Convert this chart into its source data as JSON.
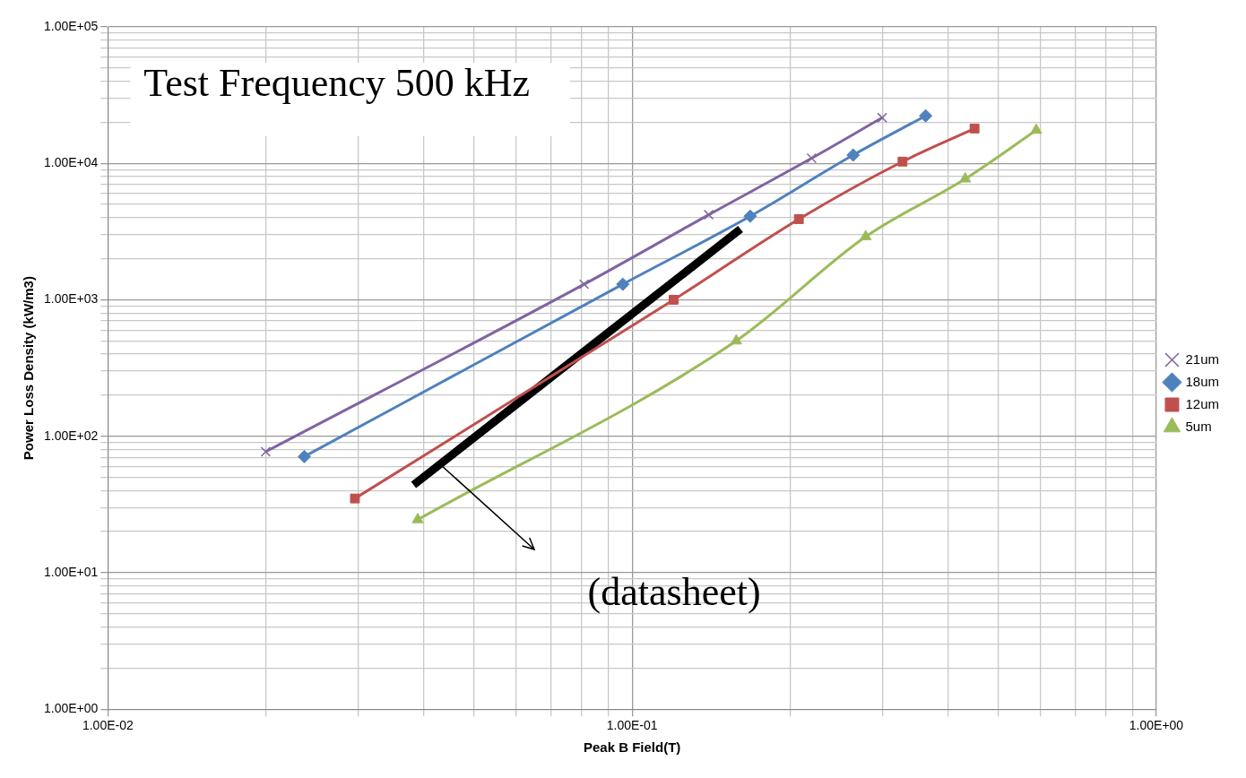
{
  "chart_data": {
    "type": "line",
    "xlabel": "Peak B Field(T)",
    "ylabel": "Power Loss Density (kW/m3)",
    "log": "xy",
    "grid": true,
    "legend": "right",
    "xlim": [
      0.01,
      1
    ],
    "ylim": [
      1,
      100000
    ],
    "xticks": [
      {
        "value": 0.01,
        "label": "1.00E-02"
      },
      {
        "value": 0.02,
        "label": null
      },
      {
        "value": 0.03,
        "label": null
      },
      {
        "value": 0.04,
        "label": null
      },
      {
        "value": 0.05,
        "label": null
      },
      {
        "value": 0.06,
        "label": null
      },
      {
        "value": 0.07,
        "label": null
      },
      {
        "value": 0.08,
        "label": null
      },
      {
        "value": 0.09,
        "label": null
      },
      {
        "value": 0.1,
        "label": "1.00E-01"
      },
      {
        "value": 0.2,
        "label": null
      },
      {
        "value": 0.3,
        "label": null
      },
      {
        "value": 0.4,
        "label": null
      },
      {
        "value": 0.5,
        "label": null
      },
      {
        "value": 0.6,
        "label": null
      },
      {
        "value": 0.7,
        "label": null
      },
      {
        "value": 0.8,
        "label": null
      },
      {
        "value": 0.9,
        "label": null
      },
      {
        "value": 1,
        "label": "1.00E+00"
      }
    ],
    "yticks": [
      {
        "value": 1,
        "label": "1.00E+00"
      },
      {
        "value": 2,
        "label": null
      },
      {
        "value": 3,
        "label": null
      },
      {
        "value": 4,
        "label": null
      },
      {
        "value": 5,
        "label": null
      },
      {
        "value": 6,
        "label": null
      },
      {
        "value": 7,
        "label": null
      },
      {
        "value": 8,
        "label": null
      },
      {
        "value": 9,
        "label": null
      },
      {
        "value": 10,
        "label": "1.00E+01"
      },
      {
        "value": 20,
        "label": null
      },
      {
        "value": 30,
        "label": null
      },
      {
        "value": 40,
        "label": null
      },
      {
        "value": 50,
        "label": null
      },
      {
        "value": 60,
        "label": null
      },
      {
        "value": 70,
        "label": null
      },
      {
        "value": 80,
        "label": null
      },
      {
        "value": 90,
        "label": null
      },
      {
        "value": 100,
        "label": "1.00E+02"
      },
      {
        "value": 200,
        "label": null
      },
      {
        "value": 300,
        "label": null
      },
      {
        "value": 400,
        "label": null
      },
      {
        "value": 500,
        "label": null
      },
      {
        "value": 600,
        "label": null
      },
      {
        "value": 700,
        "label": null
      },
      {
        "value": 800,
        "label": null
      },
      {
        "value": 900,
        "label": null
      },
      {
        "value": 1000,
        "label": "1.00E+03"
      },
      {
        "value": 2000,
        "label": null
      },
      {
        "value": 3000,
        "label": null
      },
      {
        "value": 4000,
        "label": null
      },
      {
        "value": 5000,
        "label": null
      },
      {
        "value": 6000,
        "label": null
      },
      {
        "value": 7000,
        "label": null
      },
      {
        "value": 8000,
        "label": null
      },
      {
        "value": 9000,
        "label": null
      },
      {
        "value": 10000,
        "label": "1.00E+04"
      },
      {
        "value": 20000,
        "label": null
      },
      {
        "value": 30000,
        "label": null
      },
      {
        "value": 40000,
        "label": null
      },
      {
        "value": 50000,
        "label": null
      },
      {
        "value": 60000,
        "label": null
      },
      {
        "value": 70000,
        "label": null
      },
      {
        "value": 80000,
        "label": null
      },
      {
        "value": 90000,
        "label": null
      },
      {
        "value": 100000,
        "label": "1.00E+05"
      }
    ],
    "series": [
      {
        "name": "21um",
        "color": "#8064a2",
        "marker": "cross",
        "x": [
          0.02,
          0.081,
          0.14,
          0.22,
          0.3
        ],
        "values": [
          77,
          1300,
          4200,
          10900,
          21600
        ]
      },
      {
        "name": "18um",
        "color": "#4f81bd",
        "marker": "diamond",
        "x": [
          0.0237,
          0.096,
          0.168,
          0.264,
          0.363
        ],
        "values": [
          71,
          1300,
          4100,
          11500,
          22300
        ]
      },
      {
        "name": "12um",
        "color": "#c0504d",
        "marker": "square",
        "x": [
          0.0296,
          0.12,
          0.208,
          0.328,
          0.45
        ],
        "values": [
          35,
          1000,
          3900,
          10300,
          18000
        ]
      },
      {
        "name": "5um",
        "color": "#9bbb59",
        "marker": "triangle",
        "x": [
          0.039,
          0.158,
          0.279,
          0.432,
          0.59
        ],
        "values": [
          24.5,
          500,
          2900,
          7700,
          17500
        ]
      },
      {
        "color": "#000000",
        "marker": "none",
        "x": [
          0.0383,
          0.161
        ],
        "values": [
          44,
          3300
        ]
      }
    ],
    "annotations": [
      "Test Frequency 500 kHz",
      "(datasheet)"
    ]
  }
}
